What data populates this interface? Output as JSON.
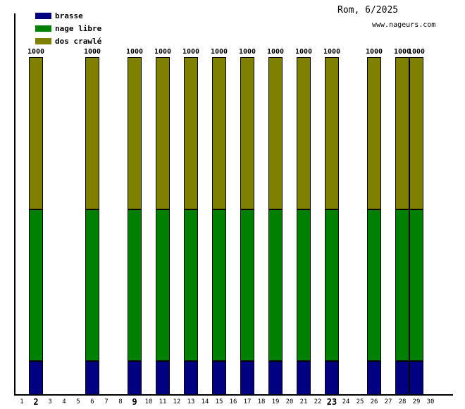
{
  "chart_data": {
    "type": "bar",
    "stacked": true,
    "title": "Rom, 6/2025",
    "watermark": "www.nageurs.com",
    "unit": "m",
    "grid": false,
    "legend_position": "top-left",
    "ylim": [
      0,
      1000
    ],
    "categories": [
      1,
      2,
      3,
      4,
      5,
      6,
      7,
      8,
      9,
      10,
      11,
      12,
      13,
      14,
      15,
      16,
      17,
      18,
      19,
      20,
      21,
      22,
      23,
      24,
      25,
      26,
      27,
      28,
      29,
      30
    ],
    "bold_categories": [
      2,
      9,
      23
    ],
    "bar_days": [
      2,
      6,
      9,
      11,
      13,
      15,
      17,
      19,
      21,
      23,
      26,
      28,
      29
    ],
    "series": [
      {
        "name": "brasse",
        "color": "#000080",
        "values": [
          100,
          100,
          100,
          100,
          100,
          100,
          100,
          100,
          100,
          100,
          100,
          100,
          100
        ]
      },
      {
        "name": "nage libre",
        "color": "#008000",
        "values": [
          450,
          450,
          450,
          450,
          450,
          450,
          450,
          450,
          450,
          450,
          450,
          450,
          450
        ]
      },
      {
        "name": "dos crawlé",
        "color": "#808000",
        "values": [
          450,
          450,
          450,
          450,
          450,
          450,
          450,
          450,
          450,
          450,
          450,
          450,
          450
        ]
      }
    ],
    "bar_totals": [
      1000,
      1000,
      1000,
      1000,
      1000,
      1000,
      1000,
      1000,
      1000,
      1000,
      1000,
      1000,
      1000
    ],
    "bar_total_label": "1000"
  }
}
